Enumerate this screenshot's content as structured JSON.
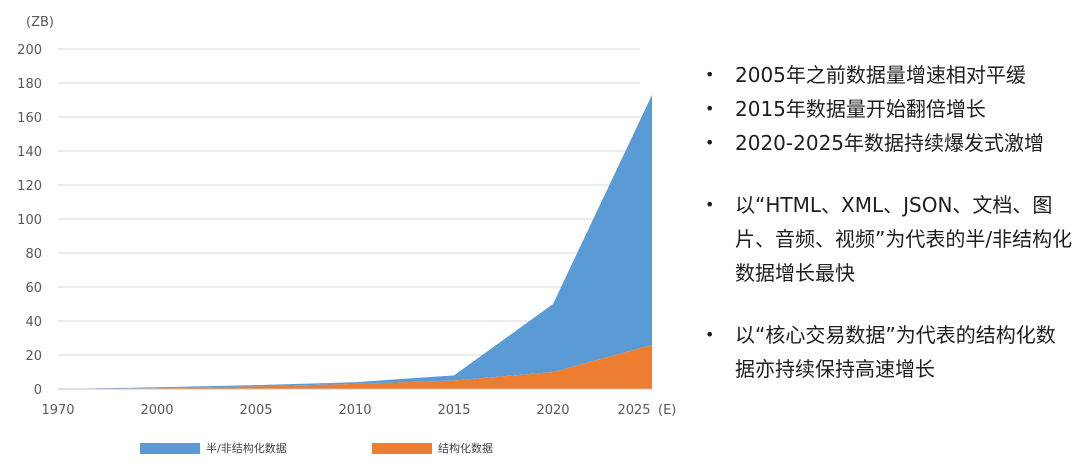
{
  "chart_data": {
    "type": "area",
    "stacked": true,
    "unit_label": "(ZB)",
    "x": [
      1970,
      2000,
      2005,
      2010,
      2015,
      2020,
      2025
    ],
    "x_tick_labels": [
      "1970",
      "2000",
      "2005",
      "2010",
      "2015",
      "2020",
      "2025"
    ],
    "x_suffix": "(E)",
    "ylim": [
      0,
      200
    ],
    "y_ticks": [
      0,
      20,
      40,
      60,
      80,
      100,
      120,
      140,
      160,
      180,
      200
    ],
    "grid": true,
    "legend_placement": "bottom",
    "series": [
      {
        "name": "结构化数据",
        "color": "#ED7D31",
        "values": [
          0,
          0.5,
          1.5,
          3,
          5,
          10,
          26
        ]
      },
      {
        "name": "半/非结构化数据",
        "color": "#5B9BD5",
        "values": [
          0,
          0.5,
          0.8,
          1,
          3,
          40,
          147
        ]
      }
    ]
  },
  "bullets": [
    {
      "text": "2005年之前数据量增速相对平缓"
    },
    {
      "text": "2015年数据量开始翻倍增长"
    },
    {
      "text": "2020-2025年数据持续爆发式激增"
    },
    {
      "text": "以“HTML、XML、JSON、文档、图片、音频、视频”为代表的半/非结构化数据增长最快",
      "gap_before": true
    },
    {
      "text": "以“核心交易数据”为代表的结构化数据亦持续保持高速增长",
      "gap_before": true
    }
  ],
  "bullet_symbol": "•"
}
